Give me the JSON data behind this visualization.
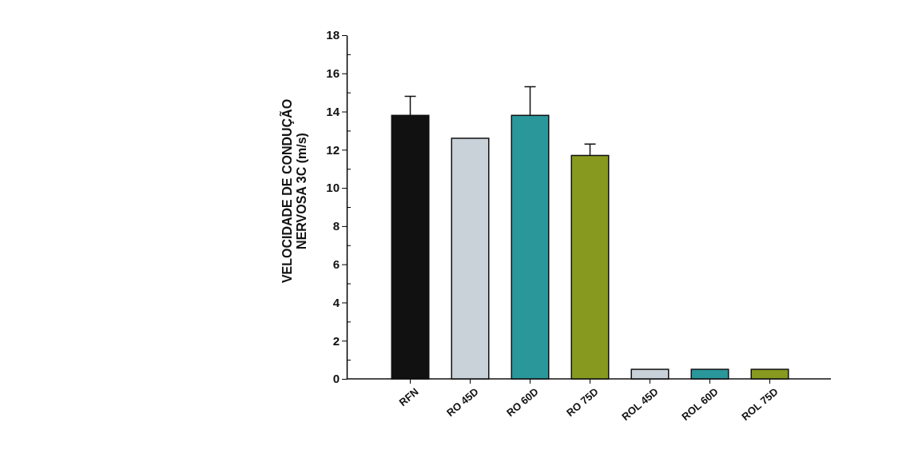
{
  "chart_data": {
    "type": "bar",
    "ylabel": "VELOCIDADE DE CONDUÇÃO\nNERVOSA 3C (m/s)",
    "categories": [
      "RFN",
      "RO 45D",
      "RO 60D",
      "RO 75D",
      "ROL 45D",
      "ROL 60D",
      "ROL 75D"
    ],
    "values": [
      13.8,
      12.6,
      13.8,
      11.7,
      0.5,
      0.5,
      0.5
    ],
    "colors": [
      "#111111",
      "#c9d1d9",
      "#2a979b",
      "#879a1f",
      "#c9d1d9",
      "#2a979b",
      "#879a1f"
    ],
    "errors": [
      [
        13.8,
        14.8
      ],
      null,
      [
        13.8,
        15.3
      ],
      [
        11.7,
        12.3
      ],
      null,
      null,
      null
    ],
    "ylim": [
      0,
      18
    ],
    "yticks": [
      0,
      {
        "value": 1,
        "label": null
      },
      2,
      {
        "value": 3,
        "label": null
      },
      4,
      {
        "value": 5,
        "label": null
      },
      6,
      {
        "value": 7,
        "label": null
      },
      8,
      {
        "value": 9,
        "label": null
      },
      10,
      {
        "value": 11,
        "label": null
      },
      12,
      {
        "value": 13,
        "label": null
      },
      14,
      {
        "value": 15,
        "label": null
      },
      16,
      {
        "value": 17,
        "label": null
      },
      18
    ],
    "grid": false
  }
}
